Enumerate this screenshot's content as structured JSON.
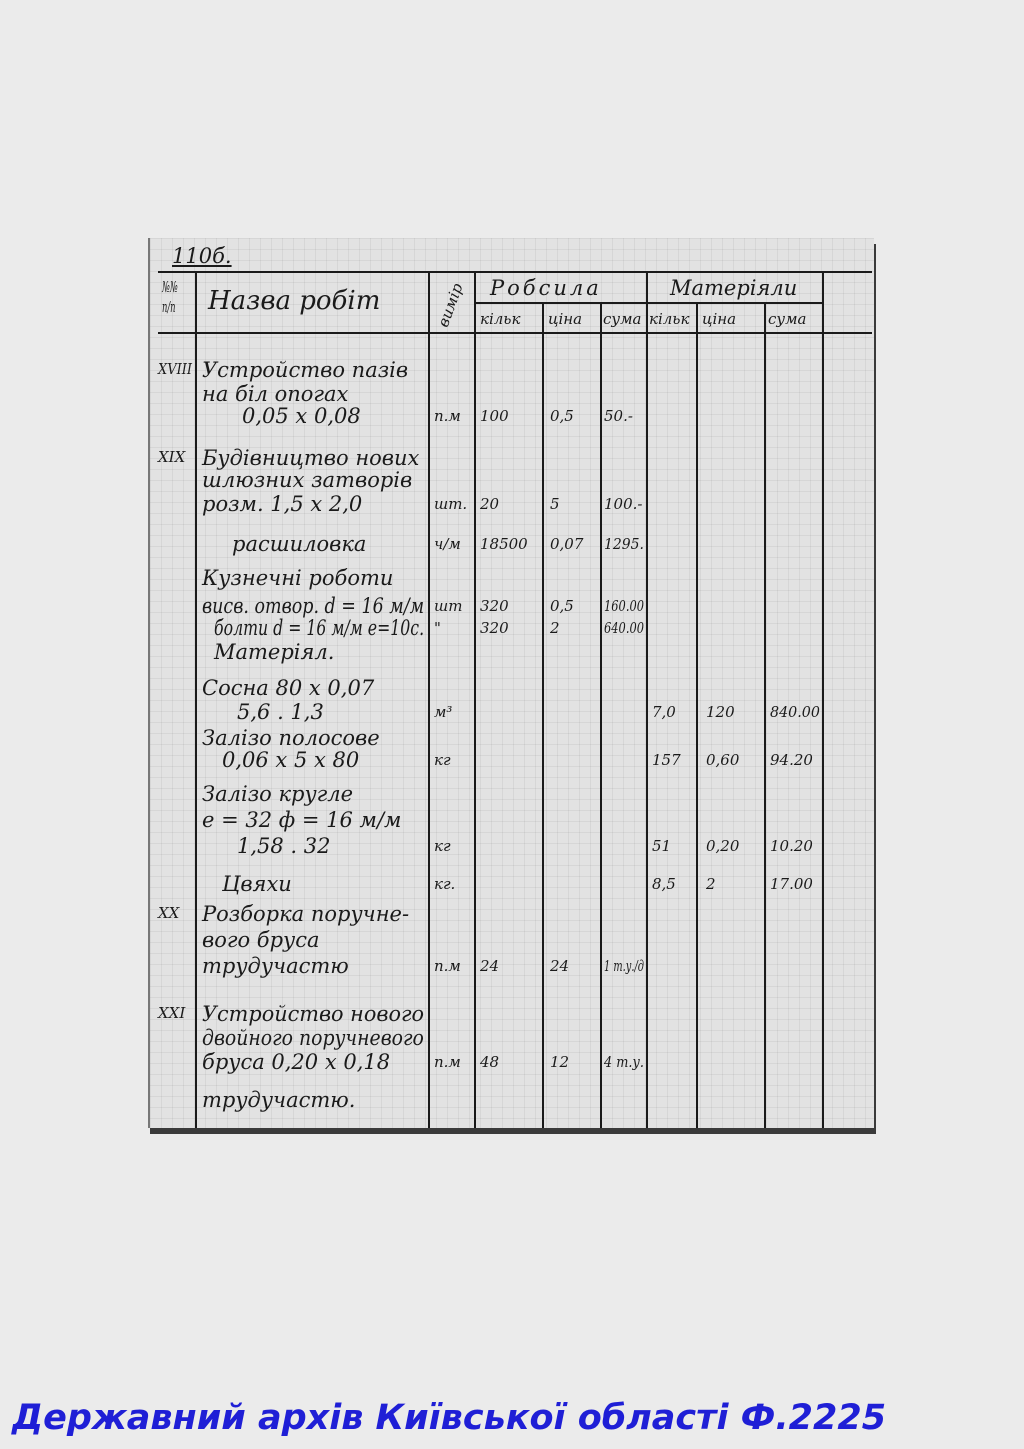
{
  "page_number": "110б.",
  "header": {
    "num": "№№ п/п",
    "name": "Назва робіт",
    "unit": "вимір",
    "labor": "Робсила",
    "materials": "Матеріяли",
    "qty": "кільк",
    "price": "ціна",
    "sum": "сума"
  },
  "rows": [
    {
      "num": "XVIII",
      "lines": [
        {
          "text": "Устройство пазів"
        },
        {
          "text": "на біл опогах"
        },
        {
          "text": "0,05 x 0,08",
          "unit": "п.м",
          "lq": "100",
          "lp": "0,5",
          "ls": "50.-"
        }
      ]
    },
    {
      "num": "XIX",
      "lines": [
        {
          "text": "Будівництво нових"
        },
        {
          "text": "шлюзних затворів"
        },
        {
          "text": "розм. 1,5 x 2,0",
          "unit": "шт.",
          "lq": "20",
          "lp": "5",
          "ls": "100.-"
        },
        {
          "text": "расшиловка",
          "unit": "ч/м",
          "lq": "18500",
          "lp": "0,07",
          "ls": "1295."
        },
        {
          "text": "Кузнечні роботи"
        },
        {
          "text": "висв. отвор. d = 16 м/м",
          "unit": "шт",
          "lq": "320",
          "lp": "0,5",
          "ls": "160.00"
        },
        {
          "text": "болти d = 16 м/м e=10с.",
          "unit": "\"",
          "lq": "320",
          "lp": "2",
          "ls": "640.00"
        },
        {
          "text": "Матеріял."
        },
        {
          "text": "Сосна 80 x 0,07"
        },
        {
          "text": "5,6 . 1,3",
          "unit": "м³",
          "mq": "7,0",
          "mp": "120",
          "ms": "840.00"
        },
        {
          "text": "Залізо полосове"
        },
        {
          "text": "0,06 x 5 x 80",
          "unit": "кг",
          "mq": "157",
          "mp": "0,60",
          "ms": "94.20"
        },
        {
          "text": "Залізо кругле"
        },
        {
          "text": "e = 32 ф = 16 м/м"
        },
        {
          "text": "1,58 . 32",
          "unit": "кг",
          "mq": "51",
          "mp": "0,20",
          "ms": "10.20"
        },
        {
          "text": "Цвяхи",
          "unit": "кг.",
          "mq": "8,5",
          "mp": "2",
          "ms": "17.00"
        }
      ]
    },
    {
      "num": "XX",
      "lines": [
        {
          "text": "Розборка поручне-"
        },
        {
          "text": "вого бруса"
        },
        {
          "text": "трудучастю",
          "unit": "п.м",
          "lq": "24",
          "lp": "24",
          "ls": "1 т.у./д"
        }
      ]
    },
    {
      "num": "XXI",
      "lines": [
        {
          "text": "Устройство нового"
        },
        {
          "text": "двойного поручневого"
        },
        {
          "text": "бруса 0,20 x 0,18",
          "unit": "п.м",
          "lq": "48",
          "lp": "12",
          "ls": "4 т.у."
        },
        {
          "text": "трудучастю."
        }
      ]
    }
  ],
  "footer": "Державний архів Київської області Ф.2225"
}
